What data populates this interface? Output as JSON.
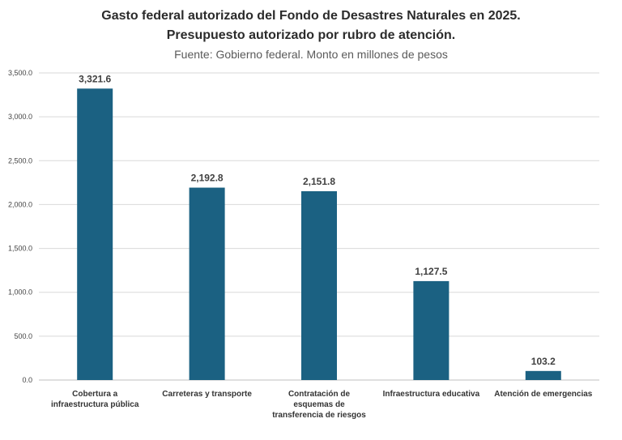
{
  "chart_data": {
    "type": "bar",
    "title": "Gasto federal autorizado del Fondo de Desastres Naturales en 2025.",
    "subtitle": "Presupuesto autorizado por rubro de atención.",
    "source": "Fuente: Gobierno federal. Monto en millones de pesos",
    "categories": [
      [
        "Cobertura a",
        "infraestructura pública"
      ],
      [
        "Carreteras y transporte"
      ],
      [
        "Contratación de",
        "esquemas de",
        "transferencia de riesgos"
      ],
      [
        "Infraestructura educativa"
      ],
      [
        "Atención de emergencias"
      ]
    ],
    "values": [
      3321.6,
      2192.8,
      2151.8,
      1127.5,
      103.2
    ],
    "value_labels": [
      "3,321.6",
      "2,192.8",
      "2,151.8",
      "1,127.5",
      "103.2"
    ],
    "ylim": [
      0,
      3500
    ],
    "yticks": [
      0,
      500,
      1000,
      1500,
      2000,
      2500,
      3000,
      3500
    ],
    "ytick_labels": [
      "0.0",
      "500.0",
      "1,000.0",
      "1,500.0",
      "2,000.0",
      "2,500.0",
      "3,000.0",
      "3,500.0"
    ],
    "xlabel": "",
    "ylabel": "",
    "grid": true,
    "legend": "none",
    "bar_color": "#1b6182",
    "grid_color": "#d9d9d9"
  }
}
